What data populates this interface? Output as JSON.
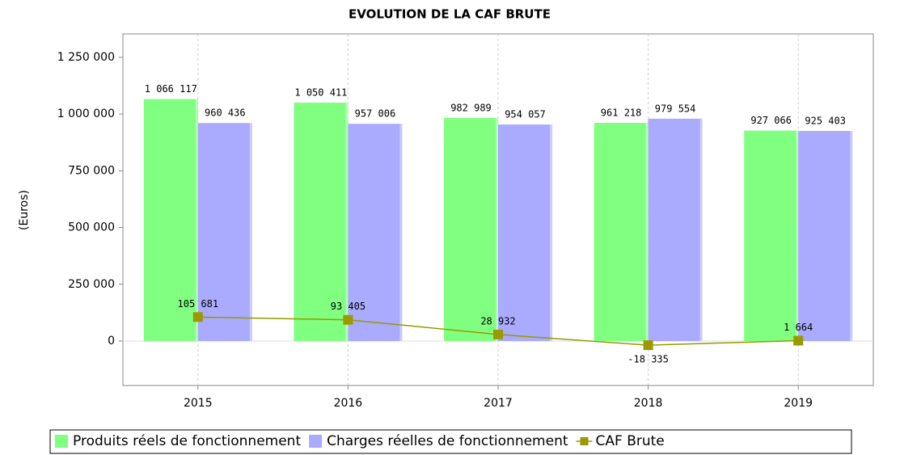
{
  "chart_data": {
    "type": "bar",
    "title": "EVOLUTION DE LA CAF BRUTE",
    "y_label": "(Euros)",
    "categories": [
      "2015",
      "2016",
      "2017",
      "2018",
      "2019"
    ],
    "series": [
      {
        "name": "Produits réels de fonctionnement",
        "color": "#80ff80",
        "type": "bar",
        "values": [
          1066117,
          1050411,
          982989,
          961218,
          927066
        ],
        "value_labels": [
          "1 066 117",
          "1 050 411",
          "982 989",
          "961 218",
          "927 066"
        ]
      },
      {
        "name": "Charges réelles de fonctionnement",
        "color": "#aaaaff",
        "type": "bar",
        "values": [
          960436,
          957006,
          954057,
          979554,
          925403
        ],
        "value_labels": [
          "960 436",
          "957 006",
          "954 057",
          "979 554",
          "925 403"
        ]
      },
      {
        "name": "CAF Brute",
        "color": "#999900",
        "type": "line",
        "values": [
          105681,
          93405,
          28932,
          -18335,
          1664
        ],
        "value_labels": [
          "105 681",
          "93 405",
          "28 932",
          "-18 335",
          "1 664"
        ]
      }
    ],
    "ylim": [
      -196000,
      1353000
    ],
    "yticks": [
      0,
      {
        "value": 250000,
        "label": "250 000"
      },
      {
        "value": 500000,
        "label": "500 000"
      },
      {
        "value": 750000,
        "label": "750 000"
      },
      {
        "value": 1000000,
        "label": "1 000 000"
      },
      {
        "value": 1250000,
        "label": "1 250 000"
      }
    ],
    "grid": "x",
    "legend": "bottom"
  }
}
